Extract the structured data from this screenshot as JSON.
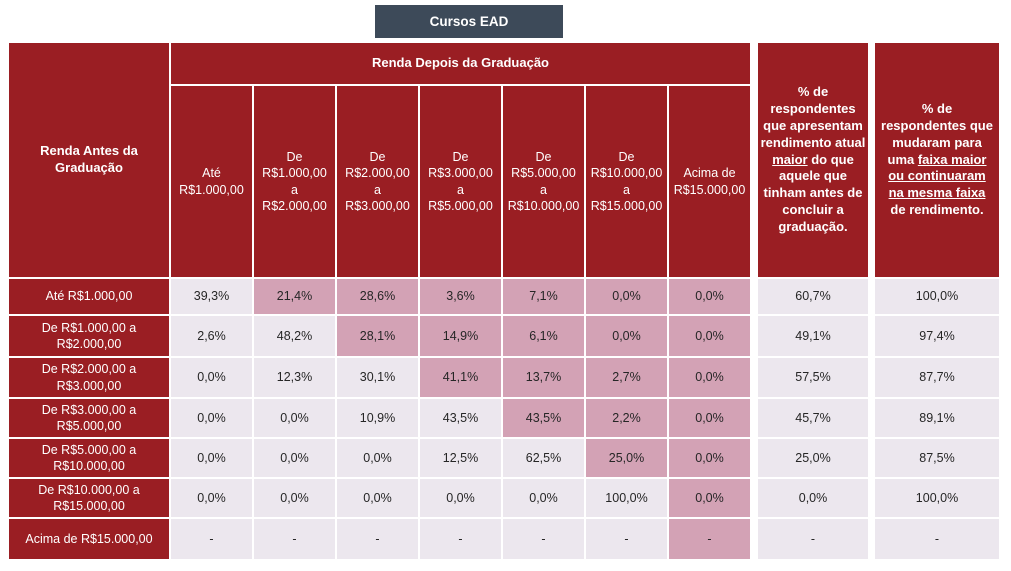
{
  "title": "Cursos EAD",
  "colors": {
    "header_red": "#9A1E23",
    "highlight_pink": "#D3A2B5",
    "cell_light": "#ECE7EE",
    "title_slate": "#3D4A59"
  },
  "chart_data": {
    "type": "table",
    "title": "Cursos EAD",
    "row_header": "Renda Antes da Graduação",
    "col_group_header": "Renda Depois da Graduação",
    "columns": [
      "Até\nR$1.000,00",
      "De\nR$1.000,00\na\nR$2.000,00",
      "De\nR$2.000,00\na\nR$3.000,00",
      "De\nR$3.000,00\na\nR$5.000,00",
      "De\nR$5.000,00\na\nR$10.000,00",
      "De\nR$10.000,00\na\nR$15.000,00",
      "Acima de\nR$15.000,00"
    ],
    "pct_maior_header_segments": [
      {
        "text": "% de respondentes que apresentam rendimento atual ",
        "underline": false
      },
      {
        "text": "maior",
        "underline": true
      },
      {
        "text": " do que aquele que tinham antes de concluir a graduação.",
        "underline": false
      }
    ],
    "pct_faixa_header_segments": [
      {
        "text": "% de respondentes que mudaram para uma ",
        "underline": false
      },
      {
        "text": "faixa maior ou continuaram na mesma faixa",
        "underline": true
      },
      {
        "text": " de rendimento.",
        "underline": false
      }
    ],
    "rows": [
      {
        "label": "Até R$1.000,00",
        "values": [
          "39,3%",
          "21,4%",
          "28,6%",
          "3,6%",
          "7,1%",
          "0,0%",
          "0,0%"
        ],
        "highlight": [
          0,
          1,
          1,
          1,
          1,
          1,
          1
        ],
        "pct_maior": "60,7%",
        "pct_faixa": "100,0%"
      },
      {
        "label": "De R$1.000,00 a R$2.000,00",
        "values": [
          "2,6%",
          "48,2%",
          "28,1%",
          "14,9%",
          "6,1%",
          "0,0%",
          "0,0%"
        ],
        "highlight": [
          0,
          0,
          1,
          1,
          1,
          1,
          1
        ],
        "pct_maior": "49,1%",
        "pct_faixa": "97,4%"
      },
      {
        "label": "De R$2.000,00 a R$3.000,00",
        "values": [
          "0,0%",
          "12,3%",
          "30,1%",
          "41,1%",
          "13,7%",
          "2,7%",
          "0,0%"
        ],
        "highlight": [
          0,
          0,
          0,
          1,
          1,
          1,
          1
        ],
        "pct_maior": "57,5%",
        "pct_faixa": "87,7%"
      },
      {
        "label": "De R$3.000,00 a R$5.000,00",
        "values": [
          "0,0%",
          "0,0%",
          "10,9%",
          "43,5%",
          "43,5%",
          "2,2%",
          "0,0%"
        ],
        "highlight": [
          0,
          0,
          0,
          0,
          1,
          1,
          1
        ],
        "pct_maior": "45,7%",
        "pct_faixa": "89,1%"
      },
      {
        "label": "De R$5.000,00 a R$10.000,00",
        "values": [
          "0,0%",
          "0,0%",
          "0,0%",
          "12,5%",
          "62,5%",
          "25,0%",
          "0,0%"
        ],
        "highlight": [
          0,
          0,
          0,
          0,
          0,
          1,
          1
        ],
        "pct_maior": "25,0%",
        "pct_faixa": "87,5%"
      },
      {
        "label": "De R$10.000,00 a R$15.000,00",
        "values": [
          "0,0%",
          "0,0%",
          "0,0%",
          "0,0%",
          "0,0%",
          "100,0%",
          "0,0%"
        ],
        "highlight": [
          0,
          0,
          0,
          0,
          0,
          0,
          1
        ],
        "pct_maior": "0,0%",
        "pct_faixa": "100,0%"
      },
      {
        "label": "Acima de R$15.000,00",
        "values": [
          "-",
          "-",
          "-",
          "-",
          "-",
          "-",
          "-"
        ],
        "highlight": [
          0,
          0,
          0,
          0,
          0,
          0,
          1
        ],
        "pct_maior": "-",
        "pct_faixa": "-"
      }
    ]
  }
}
